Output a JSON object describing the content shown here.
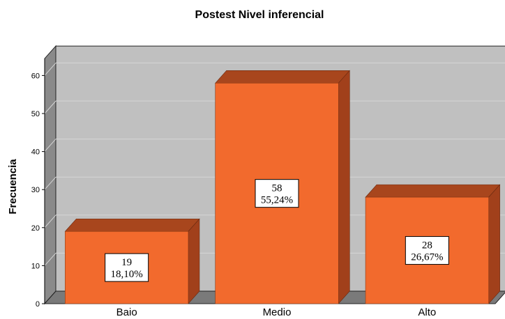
{
  "chart_data": {
    "type": "bar",
    "title": "Postest Nivel inferencial",
    "xlabel": "",
    "ylabel": "Frecuencia",
    "categories": [
      "Baio",
      "Medio",
      "Alto"
    ],
    "values": [
      19,
      58,
      28
    ],
    "percent_labels": [
      "18,10%",
      "55,24%",
      "26,67%"
    ],
    "ylim": [
      0,
      65
    ],
    "yticks": [
      0,
      10,
      20,
      30,
      40,
      50,
      60
    ],
    "grid": true,
    "legend": "none",
    "three_d": true
  },
  "colors": {
    "bar_front": "#f26a2d",
    "bar_side": "#a1401b",
    "bar_top": "#a8461d",
    "plot_back": "#c0c0c0",
    "plot_wall_left": "#8a8a8a",
    "plot_floor": "#7a7a7a",
    "grid": "#d6d6d6"
  }
}
